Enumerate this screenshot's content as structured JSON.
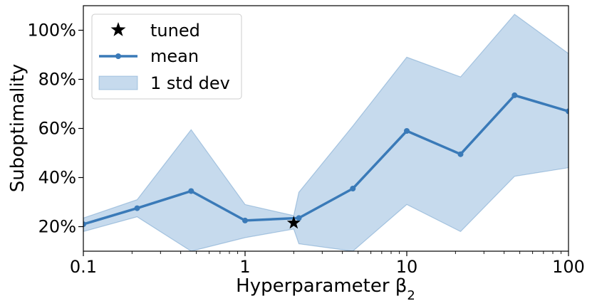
{
  "chart_data": {
    "type": "line",
    "xlabel": "Hyperparameter β",
    "xlabel_subscript": "2",
    "ylabel": "Suboptimality",
    "x_scale": "log",
    "xlim": [
      0.1,
      100
    ],
    "ylim": [
      10,
      110
    ],
    "x_ticks": [
      {
        "value": 0.1,
        "label": "0.1"
      },
      {
        "value": 1,
        "label": "1"
      },
      {
        "value": 10,
        "label": "10"
      },
      {
        "value": 100,
        "label": "100"
      }
    ],
    "y_ticks": [
      {
        "value": 20,
        "label": "20%"
      },
      {
        "value": 40,
        "label": "40%"
      },
      {
        "value": 60,
        "label": "60%"
      },
      {
        "value": 80,
        "label": "80%"
      },
      {
        "value": 100,
        "label": "100%"
      }
    ],
    "legend_position": "top-left",
    "grid": false,
    "series": [
      {
        "name": "mean",
        "color": "#3a7ab8",
        "points": [
          {
            "x": 0.1,
            "y": 21
          },
          {
            "x": 0.215,
            "y": 27.5
          },
          {
            "x": 0.464,
            "y": 34.5
          },
          {
            "x": 1.0,
            "y": 22.5
          },
          {
            "x": 2.15,
            "y": 23.5
          },
          {
            "x": 4.64,
            "y": 35.5
          },
          {
            "x": 10.0,
            "y": 59
          },
          {
            "x": 21.5,
            "y": 49.5
          },
          {
            "x": 46.4,
            "y": 73.5
          },
          {
            "x": 100,
            "y": 67
          }
        ]
      },
      {
        "name": "1 std dev",
        "color": "#a7c6e3",
        "band": [
          {
            "x": 0.1,
            "low": 18,
            "high": 23.5
          },
          {
            "x": 0.215,
            "low": 24,
            "high": 31
          },
          {
            "x": 0.464,
            "low": 10,
            "high": 59.5
          },
          {
            "x": 1.0,
            "low": 15.5,
            "high": 29
          },
          {
            "x": 2.0,
            "low": 19,
            "high": 24.5
          },
          {
            "x": 2.15,
            "low": 13,
            "high": 34
          },
          {
            "x": 4.64,
            "low": 10,
            "high": 61
          },
          {
            "x": 10.0,
            "low": 29,
            "high": 89
          },
          {
            "x": 21.5,
            "low": 18,
            "high": 81
          },
          {
            "x": 46.4,
            "low": 40.5,
            "high": 106.5
          },
          {
            "x": 100,
            "low": 44,
            "high": 90.5
          }
        ]
      },
      {
        "name": "tuned",
        "color": "#000000",
        "points": [
          {
            "x": 2.0,
            "y": 21.5
          }
        ]
      }
    ],
    "legend": [
      {
        "label": "tuned",
        "marker": "star"
      },
      {
        "label": "mean",
        "marker": "line-dot"
      },
      {
        "label": "1 std dev",
        "marker": "patch"
      }
    ]
  }
}
